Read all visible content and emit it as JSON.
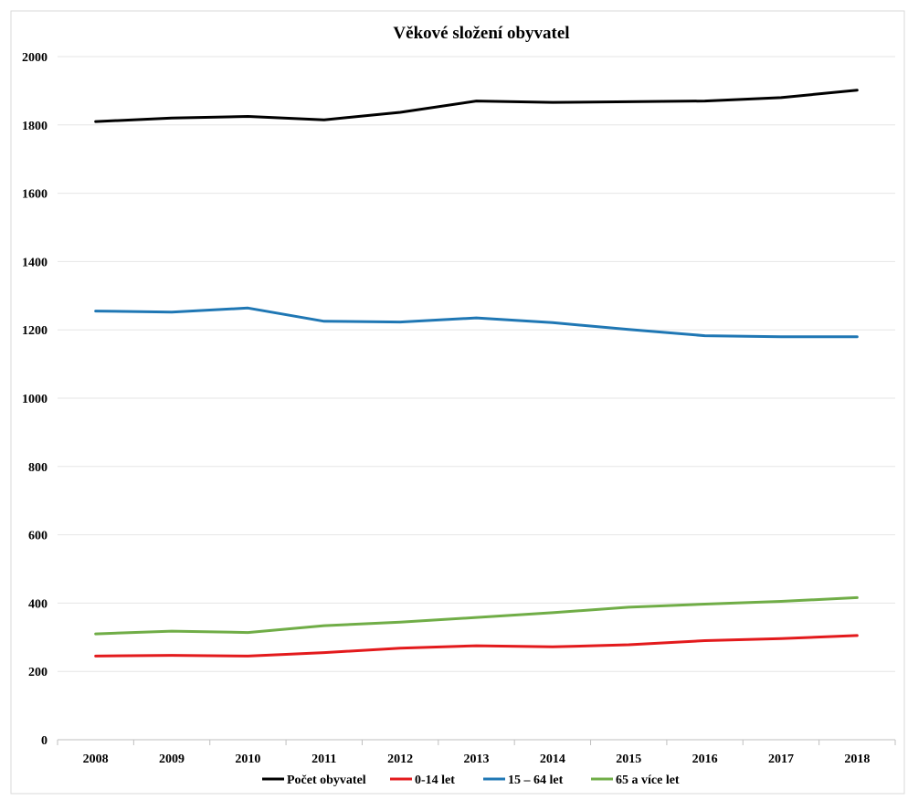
{
  "chart_data": {
    "type": "line",
    "title": "Věkové složení obyvatel",
    "xlabel": "",
    "ylabel": "",
    "categories": [
      "2008",
      "2009",
      "2010",
      "2011",
      "2012",
      "2013",
      "2014",
      "2015",
      "2016",
      "2017",
      "2018"
    ],
    "ylim": [
      0,
      2000
    ],
    "yticks": [
      0,
      200,
      400,
      600,
      800,
      1000,
      1200,
      1400,
      1600,
      1800,
      2000
    ],
    "grid": true,
    "legend_position": "bottom",
    "series": [
      {
        "name": "Počet obyvatel",
        "color": "#000000",
        "values": [
          1810,
          1820,
          1825,
          1815,
          1837,
          1870,
          1866,
          1868,
          1870,
          1880,
          1902
        ]
      },
      {
        "name": "0-14 let",
        "color": "#e31a1c",
        "values": [
          245,
          247,
          245,
          255,
          268,
          275,
          272,
          278,
          290,
          296,
          305
        ]
      },
      {
        "name": "15 – 64 let",
        "color": "#1f77b4",
        "values": [
          1255,
          1252,
          1264,
          1225,
          1223,
          1235,
          1221,
          1201,
          1183,
          1180,
          1180
        ]
      },
      {
        "name": "65 a více let",
        "color": "#70ad47",
        "values": [
          310,
          318,
          314,
          334,
          344,
          358,
          372,
          388,
          397,
          405,
          416
        ]
      }
    ]
  }
}
